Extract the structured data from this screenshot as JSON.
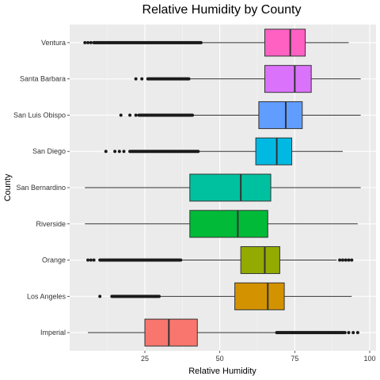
{
  "chart_data": {
    "type": "boxplot",
    "orientation": "horizontal",
    "title": "Relative Humidity by County",
    "xlabel": "Relative Humidity",
    "ylabel": "County",
    "xlim": [
      0,
      100
    ],
    "x_ticks": [
      25,
      50,
      75,
      100
    ],
    "grid": true,
    "legend": "none",
    "categories": [
      "Imperial",
      "Los Angeles",
      "Orange",
      "Riverside",
      "San Bernardino",
      "San Diego",
      "San Luis Obispo",
      "Santa Barbara",
      "Ventura"
    ],
    "boxes": [
      {
        "name": "Imperial",
        "whisker_low": 6,
        "q1": 25,
        "median": 33,
        "q3": 42.5,
        "whisker_high": 69,
        "color": "#F8766D",
        "outliers_range": [
          69,
          92
        ],
        "outliers_points": [
          93,
          94.5,
          96
        ]
      },
      {
        "name": "Los Angeles",
        "whisker_low": 14,
        "q1": 55,
        "median": 66,
        "q3": 71.5,
        "whisker_high": 94,
        "color": "#D39200",
        "outliers_range": [
          14,
          30
        ],
        "outliers_points": [
          10
        ]
      },
      {
        "name": "Orange",
        "whisker_low": 37,
        "q1": 57,
        "median": 65,
        "q3": 70,
        "whisker_high": 89,
        "color": "#93AA00",
        "outliers_range": [
          10,
          37
        ],
        "outliers_points": [
          6,
          7,
          8,
          90,
          91,
          92,
          93,
          94
        ]
      },
      {
        "name": "Riverside",
        "whisker_low": 5,
        "q1": 40,
        "median": 56,
        "q3": 66,
        "whisker_high": 96,
        "color": "#00BA38",
        "outliers_range": [],
        "outliers_points": []
      },
      {
        "name": "San Bernardino",
        "whisker_low": 5,
        "q1": 40,
        "median": 57,
        "q3": 67,
        "whisker_high": 97,
        "color": "#00C19F",
        "outliers_range": [],
        "outliers_points": []
      },
      {
        "name": "San Diego",
        "whisker_low": 43,
        "q1": 62,
        "median": 69,
        "q3": 74,
        "whisker_high": 91,
        "color": "#00B9E3",
        "outliers_range": [
          20,
          43
        ],
        "outliers_points": [
          12,
          15,
          16.5,
          18
        ]
      },
      {
        "name": "San Luis Obispo",
        "whisker_low": 41,
        "q1": 63,
        "median": 72,
        "q3": 77.5,
        "whisker_high": 97,
        "color": "#619CFF",
        "outliers_range": [
          23,
          41
        ],
        "outliers_points": [
          17,
          20,
          22
        ]
      },
      {
        "name": "Santa Barbara",
        "whisker_low": 40,
        "q1": 65,
        "median": 75,
        "q3": 80.5,
        "whisker_high": 97,
        "color": "#DB72FB",
        "outliers_range": [
          26,
          40
        ],
        "outliers_points": [
          22,
          24
        ]
      },
      {
        "name": "Ventura",
        "whisker_low": 44,
        "q1": 65,
        "median": 73.5,
        "q3": 78.5,
        "whisker_high": 93,
        "color": "#FF61C3",
        "outliers_range": [
          8,
          44
        ],
        "outliers_points": [
          5,
          6,
          7
        ]
      }
    ]
  }
}
